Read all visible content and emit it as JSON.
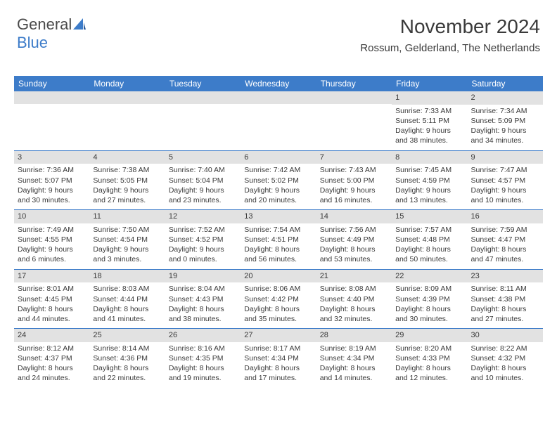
{
  "logo": {
    "text1": "General",
    "text2": "Blue"
  },
  "header": {
    "month": "November 2024",
    "location": "Rossum, Gelderland, The Netherlands"
  },
  "colors": {
    "accent": "#3d7cc9",
    "header_text": "#ffffff",
    "daynum_bg": "#e2e2e2",
    "text": "#3a3a3a",
    "background": "#ffffff"
  },
  "day_names": [
    "Sunday",
    "Monday",
    "Tuesday",
    "Wednesday",
    "Thursday",
    "Friday",
    "Saturday"
  ],
  "weeks": [
    [
      null,
      null,
      null,
      null,
      null,
      {
        "n": "1",
        "sunrise": "Sunrise: 7:33 AM",
        "sunset": "Sunset: 5:11 PM",
        "daylight": "Daylight: 9 hours and 38 minutes."
      },
      {
        "n": "2",
        "sunrise": "Sunrise: 7:34 AM",
        "sunset": "Sunset: 5:09 PM",
        "daylight": "Daylight: 9 hours and 34 minutes."
      }
    ],
    [
      {
        "n": "3",
        "sunrise": "Sunrise: 7:36 AM",
        "sunset": "Sunset: 5:07 PM",
        "daylight": "Daylight: 9 hours and 30 minutes."
      },
      {
        "n": "4",
        "sunrise": "Sunrise: 7:38 AM",
        "sunset": "Sunset: 5:05 PM",
        "daylight": "Daylight: 9 hours and 27 minutes."
      },
      {
        "n": "5",
        "sunrise": "Sunrise: 7:40 AM",
        "sunset": "Sunset: 5:04 PM",
        "daylight": "Daylight: 9 hours and 23 minutes."
      },
      {
        "n": "6",
        "sunrise": "Sunrise: 7:42 AM",
        "sunset": "Sunset: 5:02 PM",
        "daylight": "Daylight: 9 hours and 20 minutes."
      },
      {
        "n": "7",
        "sunrise": "Sunrise: 7:43 AM",
        "sunset": "Sunset: 5:00 PM",
        "daylight": "Daylight: 9 hours and 16 minutes."
      },
      {
        "n": "8",
        "sunrise": "Sunrise: 7:45 AM",
        "sunset": "Sunset: 4:59 PM",
        "daylight": "Daylight: 9 hours and 13 minutes."
      },
      {
        "n": "9",
        "sunrise": "Sunrise: 7:47 AM",
        "sunset": "Sunset: 4:57 PM",
        "daylight": "Daylight: 9 hours and 10 minutes."
      }
    ],
    [
      {
        "n": "10",
        "sunrise": "Sunrise: 7:49 AM",
        "sunset": "Sunset: 4:55 PM",
        "daylight": "Daylight: 9 hours and 6 minutes."
      },
      {
        "n": "11",
        "sunrise": "Sunrise: 7:50 AM",
        "sunset": "Sunset: 4:54 PM",
        "daylight": "Daylight: 9 hours and 3 minutes."
      },
      {
        "n": "12",
        "sunrise": "Sunrise: 7:52 AM",
        "sunset": "Sunset: 4:52 PM",
        "daylight": "Daylight: 9 hours and 0 minutes."
      },
      {
        "n": "13",
        "sunrise": "Sunrise: 7:54 AM",
        "sunset": "Sunset: 4:51 PM",
        "daylight": "Daylight: 8 hours and 56 minutes."
      },
      {
        "n": "14",
        "sunrise": "Sunrise: 7:56 AM",
        "sunset": "Sunset: 4:49 PM",
        "daylight": "Daylight: 8 hours and 53 minutes."
      },
      {
        "n": "15",
        "sunrise": "Sunrise: 7:57 AM",
        "sunset": "Sunset: 4:48 PM",
        "daylight": "Daylight: 8 hours and 50 minutes."
      },
      {
        "n": "16",
        "sunrise": "Sunrise: 7:59 AM",
        "sunset": "Sunset: 4:47 PM",
        "daylight": "Daylight: 8 hours and 47 minutes."
      }
    ],
    [
      {
        "n": "17",
        "sunrise": "Sunrise: 8:01 AM",
        "sunset": "Sunset: 4:45 PM",
        "daylight": "Daylight: 8 hours and 44 minutes."
      },
      {
        "n": "18",
        "sunrise": "Sunrise: 8:03 AM",
        "sunset": "Sunset: 4:44 PM",
        "daylight": "Daylight: 8 hours and 41 minutes."
      },
      {
        "n": "19",
        "sunrise": "Sunrise: 8:04 AM",
        "sunset": "Sunset: 4:43 PM",
        "daylight": "Daylight: 8 hours and 38 minutes."
      },
      {
        "n": "20",
        "sunrise": "Sunrise: 8:06 AM",
        "sunset": "Sunset: 4:42 PM",
        "daylight": "Daylight: 8 hours and 35 minutes."
      },
      {
        "n": "21",
        "sunrise": "Sunrise: 8:08 AM",
        "sunset": "Sunset: 4:40 PM",
        "daylight": "Daylight: 8 hours and 32 minutes."
      },
      {
        "n": "22",
        "sunrise": "Sunrise: 8:09 AM",
        "sunset": "Sunset: 4:39 PM",
        "daylight": "Daylight: 8 hours and 30 minutes."
      },
      {
        "n": "23",
        "sunrise": "Sunrise: 8:11 AM",
        "sunset": "Sunset: 4:38 PM",
        "daylight": "Daylight: 8 hours and 27 minutes."
      }
    ],
    [
      {
        "n": "24",
        "sunrise": "Sunrise: 8:12 AM",
        "sunset": "Sunset: 4:37 PM",
        "daylight": "Daylight: 8 hours and 24 minutes."
      },
      {
        "n": "25",
        "sunrise": "Sunrise: 8:14 AM",
        "sunset": "Sunset: 4:36 PM",
        "daylight": "Daylight: 8 hours and 22 minutes."
      },
      {
        "n": "26",
        "sunrise": "Sunrise: 8:16 AM",
        "sunset": "Sunset: 4:35 PM",
        "daylight": "Daylight: 8 hours and 19 minutes."
      },
      {
        "n": "27",
        "sunrise": "Sunrise: 8:17 AM",
        "sunset": "Sunset: 4:34 PM",
        "daylight": "Daylight: 8 hours and 17 minutes."
      },
      {
        "n": "28",
        "sunrise": "Sunrise: 8:19 AM",
        "sunset": "Sunset: 4:34 PM",
        "daylight": "Daylight: 8 hours and 14 minutes."
      },
      {
        "n": "29",
        "sunrise": "Sunrise: 8:20 AM",
        "sunset": "Sunset: 4:33 PM",
        "daylight": "Daylight: 8 hours and 12 minutes."
      },
      {
        "n": "30",
        "sunrise": "Sunrise: 8:22 AM",
        "sunset": "Sunset: 4:32 PM",
        "daylight": "Daylight: 8 hours and 10 minutes."
      }
    ]
  ]
}
